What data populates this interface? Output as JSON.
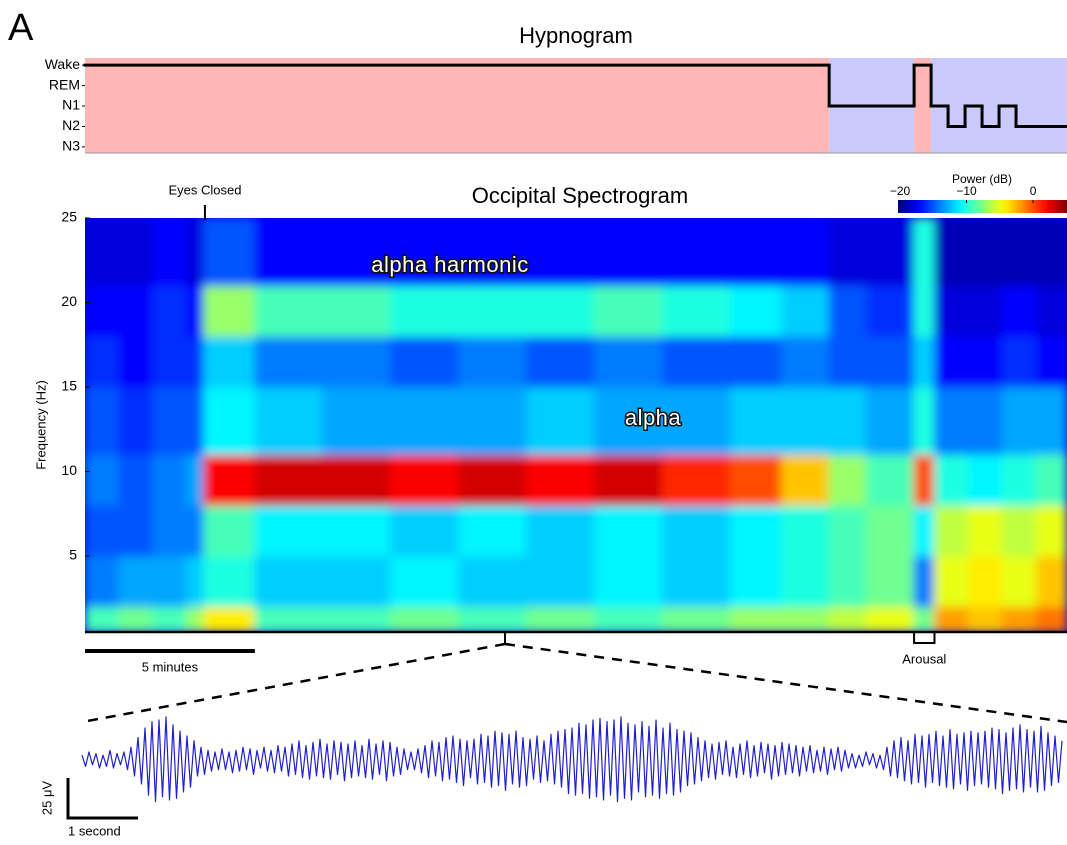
{
  "panel_label": "A",
  "chart_data": [
    {
      "type": "step",
      "title": "Hypnogram",
      "x": [
        0,
        21.9,
        24.4,
        24.9,
        25.4,
        25.9,
        26.4,
        26.9,
        27.4
      ],
      "values": [
        4,
        2,
        4,
        2,
        1,
        2,
        1,
        2,
        1
      ],
      "xlim": [
        0,
        28.9
      ],
      "ylim": [
        -0.3,
        4.35
      ],
      "yticks": [
        {
          "value": 4,
          "label": "Wake"
        },
        {
          "value": 3,
          "label": "REM"
        },
        {
          "value": 2,
          "label": "N1"
        },
        {
          "value": 1,
          "label": "N2"
        },
        {
          "value": 0,
          "label": "N3"
        }
      ],
      "color": "#000000",
      "shading": {
        "wake": "#ffb6b6",
        "sleep": "#c9c9fb"
      }
    },
    {
      "type": "heatmap",
      "title": "Occipital Spectrogram",
      "y_label": "Frequency (Hz)",
      "x_edges": [
        0,
        1,
        2,
        3,
        3.5,
        5,
        7,
        9,
        11,
        13,
        15,
        17,
        19,
        20.5,
        21.9,
        23,
        24.4,
        25,
        26,
        27,
        28,
        28.9
      ],
      "y_edges": [
        0.5,
        2,
        5,
        8,
        11,
        15,
        18,
        21,
        25
      ],
      "z": [
        [
          -9,
          -8,
          -9,
          -7,
          -4,
          -9,
          -9,
          -8,
          -9,
          -8,
          -9,
          -8,
          -7,
          -7,
          -6,
          -5,
          -8,
          -2,
          -3,
          -2,
          -1
        ],
        [
          -14,
          -13,
          -13,
          -12,
          -10,
          -12,
          -12,
          -11,
          -12,
          -12,
          -11,
          -12,
          -11,
          -10,
          -9,
          -8,
          -14,
          -5,
          -4,
          -5,
          -3
        ],
        [
          -15,
          -15,
          -14,
          -14,
          -9,
          -11,
          -11,
          -12,
          -11,
          -12,
          -11,
          -12,
          -11,
          -10,
          -9,
          -8,
          -11,
          -6,
          -5,
          -6,
          -5
        ],
        [
          -14,
          -15,
          -14,
          -13,
          2,
          3,
          3,
          2,
          3,
          2,
          3,
          1,
          0,
          -3,
          -7,
          -9,
          0,
          -10,
          -11,
          -10,
          -9
        ],
        [
          -15,
          -16,
          -15,
          -15,
          -11,
          -12,
          -13,
          -13,
          -13,
          -12,
          -13,
          -13,
          -12,
          -12,
          -12,
          -13,
          -10,
          -14,
          -14,
          -13,
          -13
        ],
        [
          -16,
          -17,
          -16,
          -16,
          -12,
          -14,
          -14,
          -15,
          -14,
          -15,
          -14,
          -15,
          -15,
          -14,
          -15,
          -15,
          -12,
          -17,
          -17,
          -16,
          -17
        ],
        [
          -17,
          -17,
          -16,
          -17,
          -7,
          -9,
          -9,
          -10,
          -10,
          -10,
          -9,
          -10,
          -11,
          -12,
          -15,
          -16,
          -10,
          -18,
          -18,
          -17,
          -18
        ],
        [
          -18,
          -18,
          -17,
          -18,
          -15,
          -17,
          -17,
          -17,
          -17,
          -17,
          -17,
          -17,
          -17,
          -17,
          -18,
          -18,
          -10,
          -19,
          -19,
          -19,
          -19
        ]
      ],
      "xlim": [
        0,
        28.9
      ],
      "ylim": [
        0.5,
        25
      ],
      "yticks": [
        5,
        10,
        15,
        20,
        25
      ],
      "colormap": "jet",
      "clim": [
        -20.3,
        5.1
      ],
      "colorbar": {
        "label": "Power (dB)",
        "ticks": [
          {
            "value": -20,
            "label": "−20"
          },
          {
            "value": -10,
            "label": "−10"
          },
          0
        ]
      },
      "annotations": [
        {
          "text": "Eyes Closed",
          "x": 3.53
        },
        {
          "text": "Arousal",
          "x": [
            24.4,
            25.0
          ]
        }
      ],
      "labels": [
        "alpha harmonic",
        "alpha"
      ],
      "scalebar": {
        "value": 5,
        "label": "5 minutes"
      }
    },
    {
      "type": "line",
      "color": "#1f1fd0",
      "xlim": [
        0,
        14
      ],
      "ylim": [
        -30,
        30
      ],
      "values": [
        3,
        -4,
        5,
        -3,
        4,
        -5,
        3,
        -4,
        6,
        -5,
        4,
        -3,
        5,
        -6,
        8,
        -10,
        14,
        -15,
        20,
        -22,
        24,
        -26,
        25,
        -23,
        27,
        -25,
        22,
        -24,
        18,
        -20,
        15,
        -17,
        12,
        -10,
        8,
        -9,
        6,
        -7,
        5,
        -6,
        7,
        -6,
        5,
        -8,
        6,
        -7,
        8,
        -6,
        7,
        -9,
        6,
        -5,
        8,
        -7,
        6,
        -8,
        9,
        -7,
        8,
        -10,
        10,
        -9,
        12,
        -11,
        9,
        -12,
        11,
        -10,
        13,
        -11,
        10,
        -12,
        12,
        -9,
        11,
        -13,
        10,
        -11,
        12,
        -10,
        9,
        -11,
        13,
        -12,
        10,
        -9,
        12,
        -13,
        11,
        -10,
        8,
        -9,
        7,
        -6,
        5,
        -6,
        7,
        -8,
        9,
        -11,
        12,
        -10,
        11,
        -13,
        14,
        -12,
        15,
        -14,
        13,
        -16,
        12,
        -11,
        13,
        -15,
        16,
        -14,
        15,
        -17,
        18,
        -16,
        17,
        -19,
        16,
        -15,
        18,
        -17,
        14,
        -16,
        13,
        -12,
        15,
        -14,
        12,
        -13,
        16,
        -15,
        18,
        -17,
        19,
        -21,
        20,
        -22,
        23,
        -21,
        22,
        -24,
        25,
        -23,
        26,
        -25,
        24,
        -22,
        25,
        -26,
        27,
        -24,
        23,
        -25,
        22,
        -20,
        24,
        -23,
        21,
        -22,
        25,
        -24,
        20,
        -21,
        23,
        -22,
        19,
        -20,
        18,
        -16,
        17,
        -15,
        14,
        -13,
        12,
        -11,
        10,
        -12,
        11,
        -9,
        12,
        -10,
        8,
        -11,
        10,
        -9,
        12,
        -11,
        9,
        -10,
        11,
        -8,
        10,
        -12,
        9,
        -10,
        11,
        -9,
        10,
        -8,
        9,
        -10,
        8,
        -7,
        9,
        -8,
        6,
        -7,
        8,
        -9,
        7,
        -6,
        8,
        -7,
        6,
        -5,
        4,
        -5,
        3,
        -4,
        5,
        -3,
        4,
        -5,
        3,
        -6,
        8,
        -10,
        12,
        -11,
        14,
        -13,
        12,
        -15,
        16,
        -14,
        15,
        -17,
        16,
        -14,
        18,
        -16,
        15,
        -17,
        19,
        -18,
        16,
        -15,
        17,
        -19,
        18,
        -16,
        17,
        -15,
        18,
        -17,
        20,
        -18,
        19,
        -21,
        17,
        -19,
        20,
        -18,
        22,
        -20,
        19,
        -17,
        18,
        -20,
        21,
        -19,
        17,
        -16,
        15,
        -14,
        12
      ],
      "scalebars": {
        "x": {
          "value": 1,
          "label": "1 second"
        },
        "y": {
          "value": 25,
          "label": "25 μV"
        }
      }
    }
  ]
}
